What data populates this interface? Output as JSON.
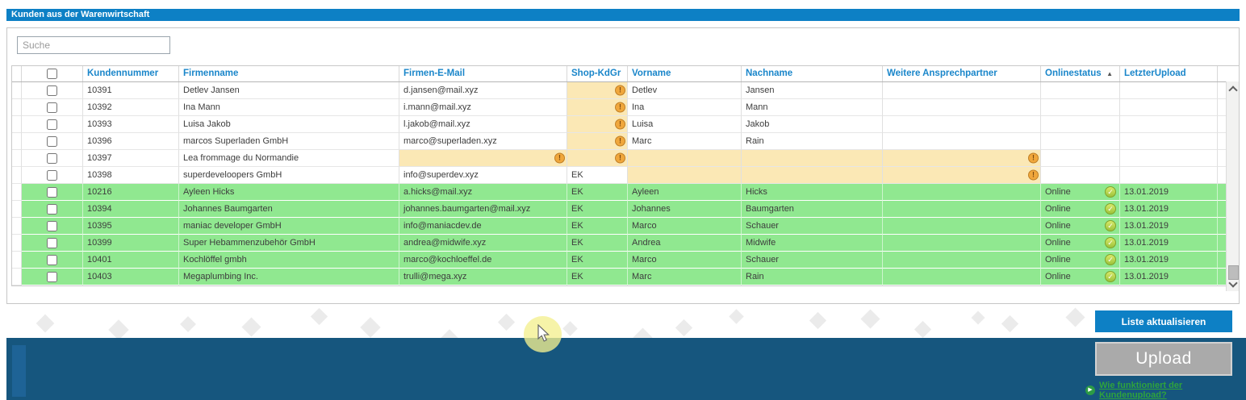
{
  "title": "Kunden aus der Warenwirtschaft",
  "search": {
    "placeholder": "Suche"
  },
  "table": {
    "columns": [
      {
        "key": "kundennummer",
        "label": "Kundennummer"
      },
      {
        "key": "firmenname",
        "label": "Firmenname"
      },
      {
        "key": "email",
        "label": "Firmen-E-Mail"
      },
      {
        "key": "shopkdgr",
        "label": "Shop-KdGr"
      },
      {
        "key": "vorname",
        "label": "Vorname"
      },
      {
        "key": "nachname",
        "label": "Nachname"
      },
      {
        "key": "ansprechpartner",
        "label": "Weitere Ansprechpartner"
      },
      {
        "key": "onlinestatus",
        "label": "Onlinestatus"
      },
      {
        "key": "letzterupload",
        "label": "LetzterUpload"
      }
    ],
    "sort": {
      "column": "onlinestatus",
      "direction": "asc"
    },
    "select_all_checked": false,
    "rows": [
      {
        "kundennummer": "10391",
        "firmenname": "Detlev Jansen",
        "email": "d.jansen@mail.xyz",
        "shopkdgr": "",
        "vorname": "Detlev",
        "nachname": "Jansen",
        "ansprechpartner": "",
        "onlinestatus": "",
        "online_ok": false,
        "letzterupload": "",
        "checked": false,
        "highlight": "none",
        "yellow": [
          "shopkdgr"
        ],
        "warn": [
          "shopkdgr"
        ]
      },
      {
        "kundennummer": "10392",
        "firmenname": "Ina Mann",
        "email": "i.mann@mail.xyz",
        "shopkdgr": "",
        "vorname": "Ina",
        "nachname": "Mann",
        "ansprechpartner": "",
        "onlinestatus": "",
        "online_ok": false,
        "letzterupload": "",
        "checked": false,
        "highlight": "none",
        "yellow": [
          "shopkdgr"
        ],
        "warn": [
          "shopkdgr"
        ]
      },
      {
        "kundennummer": "10393",
        "firmenname": "Luisa Jakob",
        "email": "l.jakob@mail.xyz",
        "shopkdgr": "",
        "vorname": "Luisa",
        "nachname": "Jakob",
        "ansprechpartner": "",
        "onlinestatus": "",
        "online_ok": false,
        "letzterupload": "",
        "checked": false,
        "highlight": "none",
        "yellow": [
          "shopkdgr"
        ],
        "warn": [
          "shopkdgr"
        ]
      },
      {
        "kundennummer": "10396",
        "firmenname": "marcos Superladen GmbH",
        "email": "marco@superladen.xyz",
        "shopkdgr": "",
        "vorname": "Marc",
        "nachname": "Rain",
        "ansprechpartner": "",
        "onlinestatus": "",
        "online_ok": false,
        "letzterupload": "",
        "checked": false,
        "highlight": "none",
        "yellow": [
          "shopkdgr"
        ],
        "warn": [
          "shopkdgr"
        ]
      },
      {
        "kundennummer": "10397",
        "firmenname": "Lea frommage du Normandie",
        "email": "",
        "shopkdgr": "",
        "vorname": "",
        "nachname": "",
        "ansprechpartner": "",
        "onlinestatus": "",
        "online_ok": false,
        "letzterupload": "",
        "checked": false,
        "highlight": "none",
        "yellow": [
          "email",
          "shopkdgr",
          "vorname",
          "nachname",
          "ansprechpartner"
        ],
        "warn": [
          "email",
          "shopkdgr",
          "ansprechpartner"
        ]
      },
      {
        "kundennummer": "10398",
        "firmenname": "superdeveloopers GmbH",
        "email": "info@superdev.xyz",
        "shopkdgr": "EK",
        "vorname": "",
        "nachname": "",
        "ansprechpartner": "",
        "onlinestatus": "",
        "online_ok": false,
        "letzterupload": "",
        "checked": false,
        "highlight": "none",
        "yellow": [
          "vorname",
          "nachname",
          "ansprechpartner"
        ],
        "warn": [
          "ansprechpartner"
        ]
      },
      {
        "kundennummer": "10216",
        "firmenname": "Ayleen Hicks",
        "email": "a.hicks@mail.xyz",
        "shopkdgr": "EK",
        "vorname": "Ayleen",
        "nachname": "Hicks",
        "ansprechpartner": "",
        "onlinestatus": "Online",
        "online_ok": true,
        "letzterupload": "13.01.2019",
        "checked": false,
        "highlight": "green",
        "yellow": [],
        "warn": []
      },
      {
        "kundennummer": "10394",
        "firmenname": "Johannes Baumgarten",
        "email": "johannes.baumgarten@mail.xyz",
        "shopkdgr": "EK",
        "vorname": "Johannes",
        "nachname": "Baumgarten",
        "ansprechpartner": "",
        "onlinestatus": "Online",
        "online_ok": true,
        "letzterupload": "13.01.2019",
        "checked": false,
        "highlight": "green",
        "yellow": [],
        "warn": []
      },
      {
        "kundennummer": "10395",
        "firmenname": "maniac developer GmbH",
        "email": "info@maniacdev.de",
        "shopkdgr": "EK",
        "vorname": "Marco",
        "nachname": "Schauer",
        "ansprechpartner": "",
        "onlinestatus": "Online",
        "online_ok": true,
        "letzterupload": "13.01.2019",
        "checked": false,
        "highlight": "green",
        "yellow": [],
        "warn": []
      },
      {
        "kundennummer": "10399",
        "firmenname": "Super Hebammenzubehör GmbH",
        "email": "andrea@midwife.xyz",
        "shopkdgr": "EK",
        "vorname": "Andrea",
        "nachname": "Midwife",
        "ansprechpartner": "",
        "onlinestatus": "Online",
        "online_ok": true,
        "letzterupload": "13.01.2019",
        "checked": false,
        "highlight": "green",
        "yellow": [],
        "warn": []
      },
      {
        "kundennummer": "10401",
        "firmenname": "Kochlöffel gmbh",
        "email": "marco@kochloeffel.de",
        "shopkdgr": "EK",
        "vorname": "Marco",
        "nachname": "Schauer",
        "ansprechpartner": "",
        "onlinestatus": "Online",
        "online_ok": true,
        "letzterupload": "13.01.2019",
        "checked": false,
        "highlight": "green",
        "yellow": [],
        "warn": []
      },
      {
        "kundennummer": "10403",
        "firmenname": "Megaplumbing Inc.",
        "email": "trulli@mega.xyz",
        "shopkdgr": "EK",
        "vorname": "Marc",
        "nachname": "Rain",
        "ansprechpartner": "",
        "onlinestatus": "Online",
        "online_ok": true,
        "letzterupload": "13.01.2019",
        "checked": false,
        "highlight": "green",
        "yellow": [],
        "warn": []
      }
    ]
  },
  "buttons": {
    "refresh": "Liste aktualisieren",
    "upload": "Upload"
  },
  "help_link": {
    "label": "Wie funktioniert der Kundenupload?"
  },
  "icons": {
    "sort_asc": "▲",
    "warning": "!",
    "online_check": "✓",
    "play": "▶"
  },
  "colors": {
    "accent_blue": "#0d80c5",
    "header_text_blue": "#1a86ca",
    "row_green": "#90e890",
    "cell_warning_yellow": "#fbe8b5",
    "warning_orange": "#f0a73c",
    "status_check_green": "#9dc23a",
    "bottom_bar_blue": "#16567e",
    "link_green": "#2fa33c",
    "upload_button_gray": "#aaaaaa"
  }
}
